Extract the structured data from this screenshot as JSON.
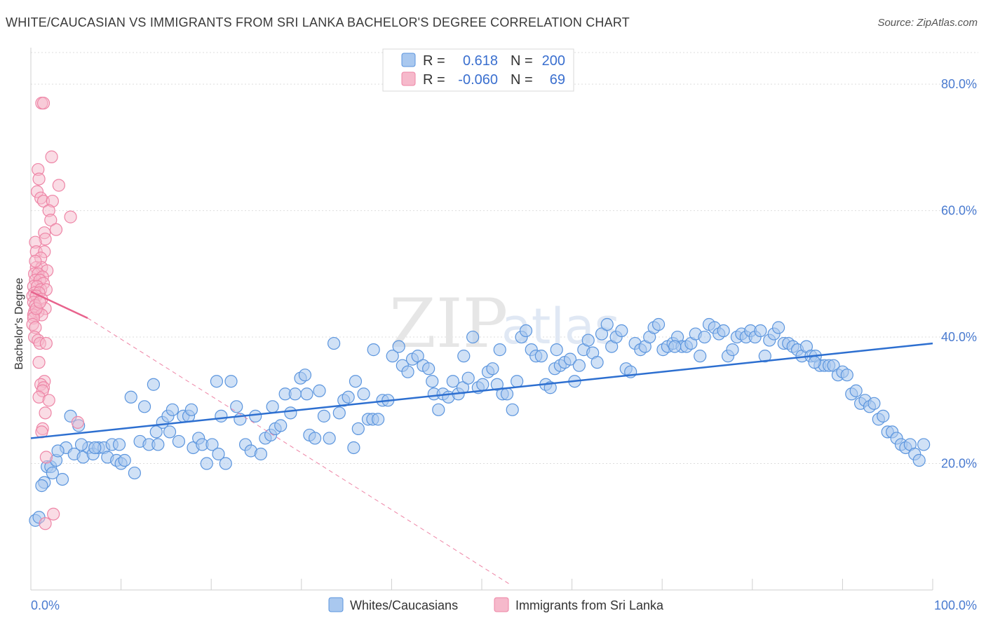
{
  "header": {
    "title": "WHITE/CAUCASIAN VS IMMIGRANTS FROM SRI LANKA BACHELOR'S DEGREE CORRELATION CHART",
    "source": "Source: ZipAtlas.com"
  },
  "watermark": {
    "zip": "ZIP",
    "atlas": "atlas"
  },
  "legend_box": {
    "row1": {
      "r_label": "R =",
      "r_value": "0.618",
      "n_label": "N =",
      "n_value": "200"
    },
    "row2": {
      "r_label": "R =",
      "r_value": "-0.060",
      "n_label": "N =",
      "n_value": "69"
    }
  },
  "colors": {
    "blue_fill": "#a9c8ef",
    "blue_stroke": "#5b95de",
    "blue_line": "#2d6fd0",
    "pink_fill": "#f6b9cb",
    "pink_stroke": "#ee85a6",
    "pink_line": "#e8638d",
    "grid": "#dddddd",
    "axis_text": "#4a7bd0"
  },
  "chart_data": {
    "type": "scatter",
    "title": "WHITE/CAUCASIAN VS IMMIGRANTS FROM SRI LANKA BACHELOR'S DEGREE CORRELATION CHART",
    "xlabel": "",
    "ylabel": "Bachelor's Degree",
    "xlim": [
      0,
      100
    ],
    "ylim": [
      0,
      85
    ],
    "x_tick_labels": [
      "0.0%",
      "100.0%"
    ],
    "y_ticks": [
      20,
      40,
      60,
      80
    ],
    "y_tick_labels": [
      "20.0%",
      "40.0%",
      "60.0%",
      "80.0%"
    ],
    "grid": true,
    "legend": "bottom-center",
    "series": [
      {
        "name": "Whites/Caucasians",
        "color": "#a9c8ef",
        "r": 0.618,
        "n": 200,
        "trend": {
          "x": [
            0,
            100
          ],
          "y": [
            24,
            39
          ]
        },
        "points": [
          [
            0.5,
            11
          ],
          [
            0.9,
            11.5
          ],
          [
            1.5,
            17
          ],
          [
            1.8,
            19.5
          ],
          [
            2.2,
            19.5
          ],
          [
            2.8,
            20.5
          ],
          [
            3.5,
            17.5
          ],
          [
            3.9,
            22.5
          ],
          [
            4.4,
            27.5
          ],
          [
            4.8,
            21.5
          ],
          [
            5.3,
            26
          ],
          [
            5.8,
            21
          ],
          [
            6.4,
            22.5
          ],
          [
            6.9,
            21.5
          ],
          [
            7.5,
            22.5
          ],
          [
            8.1,
            22.5
          ],
          [
            8.5,
            21
          ],
          [
            9.0,
            23
          ],
          [
            9.5,
            20.5
          ],
          [
            10,
            20
          ],
          [
            10.4,
            20.5
          ],
          [
            11.1,
            30.5
          ],
          [
            11.5,
            18.5
          ],
          [
            12.1,
            23.5
          ],
          [
            12.6,
            29
          ],
          [
            13.1,
            23
          ],
          [
            13.6,
            32.5
          ],
          [
            14.1,
            23
          ],
          [
            14.6,
            26.5
          ],
          [
            15.2,
            27.5
          ],
          [
            15.7,
            28.5
          ],
          [
            16.4,
            23.5
          ],
          [
            16.9,
            27.5
          ],
          [
            17.5,
            27.5
          ],
          [
            18.0,
            22.5
          ],
          [
            18.6,
            24
          ],
          [
            19.0,
            23
          ],
          [
            19.5,
            20
          ],
          [
            20.1,
            23
          ],
          [
            20.6,
            33
          ],
          [
            21.1,
            27.5
          ],
          [
            21.6,
            20
          ],
          [
            22.2,
            33
          ],
          [
            22.8,
            29
          ],
          [
            23.2,
            27
          ],
          [
            23.8,
            23
          ],
          [
            24.4,
            22
          ],
          [
            24.9,
            27.5
          ],
          [
            25.5,
            21.5
          ],
          [
            26.0,
            24
          ],
          [
            26.6,
            24.5
          ],
          [
            27.1,
            25.5
          ],
          [
            27.7,
            26
          ],
          [
            28.2,
            31
          ],
          [
            28.8,
            28
          ],
          [
            29.3,
            31
          ],
          [
            29.9,
            33.5
          ],
          [
            30.4,
            34
          ],
          [
            30.9,
            24.5
          ],
          [
            31.5,
            24
          ],
          [
            32.0,
            31.5
          ],
          [
            32.5,
            27.5
          ],
          [
            33.1,
            24
          ],
          [
            33.6,
            39
          ],
          [
            34.2,
            28
          ],
          [
            34.7,
            30
          ],
          [
            35.2,
            30.5
          ],
          [
            35.8,
            22.5
          ],
          [
            36.3,
            25.5
          ],
          [
            36.9,
            31
          ],
          [
            37.4,
            27
          ],
          [
            37.9,
            27
          ],
          [
            38.5,
            27
          ],
          [
            39.0,
            30
          ],
          [
            39.6,
            30
          ],
          [
            40.1,
            37
          ],
          [
            40.8,
            38.5
          ],
          [
            41.2,
            35.5
          ],
          [
            41.8,
            34.5
          ],
          [
            42.3,
            36.5
          ],
          [
            42.9,
            37
          ],
          [
            43.5,
            35.5
          ],
          [
            44.1,
            35
          ],
          [
            44.7,
            31
          ],
          [
            45.2,
            28.5
          ],
          [
            45.7,
            31
          ],
          [
            46.3,
            30.5
          ],
          [
            46.8,
            33
          ],
          [
            47.4,
            31
          ],
          [
            47.9,
            32
          ],
          [
            48.5,
            33.5
          ],
          [
            49.0,
            40
          ],
          [
            49.6,
            32
          ],
          [
            50.1,
            32.5
          ],
          [
            50.7,
            34.5
          ],
          [
            51.2,
            35
          ],
          [
            51.7,
            32.5
          ],
          [
            52.3,
            31
          ],
          [
            52.8,
            31
          ],
          [
            53.4,
            28.5
          ],
          [
            53.9,
            33
          ],
          [
            54.4,
            40
          ],
          [
            54.9,
            41
          ],
          [
            55.5,
            38
          ],
          [
            56.0,
            37
          ],
          [
            56.6,
            37
          ],
          [
            57.1,
            32.5
          ],
          [
            57.6,
            32
          ],
          [
            58.1,
            35
          ],
          [
            58.7,
            35.5
          ],
          [
            59.2,
            36
          ],
          [
            59.8,
            36.5
          ],
          [
            60.3,
            33
          ],
          [
            60.8,
            35.5
          ],
          [
            61.3,
            38
          ],
          [
            61.8,
            39.5
          ],
          [
            62.3,
            37.5
          ],
          [
            62.8,
            36
          ],
          [
            63.3,
            40.5
          ],
          [
            63.9,
            42
          ],
          [
            64.4,
            38.5
          ],
          [
            64.9,
            40
          ],
          [
            65.5,
            41
          ],
          [
            66.0,
            35
          ],
          [
            66.5,
            34.5
          ],
          [
            67.0,
            39
          ],
          [
            67.6,
            38
          ],
          [
            68.1,
            38.5
          ],
          [
            68.6,
            40
          ],
          [
            69.1,
            41.5
          ],
          [
            69.6,
            42
          ],
          [
            70.1,
            38
          ],
          [
            70.6,
            38.5
          ],
          [
            71.2,
            39
          ],
          [
            71.7,
            40
          ],
          [
            72.2,
            38.5
          ],
          [
            72.7,
            38.5
          ],
          [
            73.2,
            39
          ],
          [
            73.7,
            40.5
          ],
          [
            74.2,
            37
          ],
          [
            74.7,
            40
          ],
          [
            75.2,
            42
          ],
          [
            75.8,
            41.5
          ],
          [
            76.3,
            40.5
          ],
          [
            76.8,
            41
          ],
          [
            77.3,
            37
          ],
          [
            77.8,
            38
          ],
          [
            78.3,
            40
          ],
          [
            78.8,
            40.5
          ],
          [
            79.3,
            40
          ],
          [
            79.8,
            41
          ],
          [
            80.3,
            40
          ],
          [
            80.9,
            41
          ],
          [
            81.4,
            37
          ],
          [
            81.9,
            39.5
          ],
          [
            82.4,
            40.5
          ],
          [
            82.9,
            41.5
          ],
          [
            83.5,
            39
          ],
          [
            84.0,
            39
          ],
          [
            84.5,
            38.5
          ],
          [
            85.0,
            38
          ],
          [
            85.5,
            37
          ],
          [
            86.0,
            38.5
          ],
          [
            86.5,
            37
          ],
          [
            87.0,
            37
          ],
          [
            87.5,
            35.5
          ],
          [
            88.0,
            35.5
          ],
          [
            88.5,
            35.5
          ],
          [
            89.0,
            35.5
          ],
          [
            89.5,
            34
          ],
          [
            90.0,
            34.5
          ],
          [
            90.5,
            34
          ],
          [
            91.0,
            31
          ],
          [
            91.5,
            31.5
          ],
          [
            92.0,
            29.5
          ],
          [
            92.5,
            30
          ],
          [
            93.0,
            29
          ],
          [
            93.5,
            29.5
          ],
          [
            94.0,
            27
          ],
          [
            94.5,
            27.5
          ],
          [
            95.0,
            25
          ],
          [
            95.5,
            25
          ],
          [
            96.0,
            24
          ],
          [
            96.5,
            23
          ],
          [
            97.0,
            22.5
          ],
          [
            97.5,
            23
          ],
          [
            98.0,
            21.5
          ],
          [
            98.5,
            20.5
          ],
          [
            99.0,
            23
          ],
          [
            52.0,
            38
          ],
          [
            48.0,
            37
          ],
          [
            44.5,
            33
          ],
          [
            38.0,
            38
          ],
          [
            36.0,
            33
          ],
          [
            30.6,
            31
          ],
          [
            26.8,
            29
          ],
          [
            20.8,
            21.5
          ],
          [
            17.8,
            28.5
          ],
          [
            15.4,
            25
          ],
          [
            13.9,
            25
          ],
          [
            9.8,
            23
          ],
          [
            7.1,
            22.5
          ],
          [
            5.6,
            23
          ],
          [
            3.0,
            22
          ],
          [
            2.4,
            18.5
          ],
          [
            1.2,
            16.5
          ],
          [
            58.3,
            38
          ],
          [
            71.4,
            38.5
          ],
          [
            86.9,
            36
          ]
        ]
      },
      {
        "name": "Immigrants from Sri Lanka",
        "color": "#f6b9cb",
        "r": -0.06,
        "n": 69,
        "trend": {
          "x": [
            0,
            6.3
          ],
          "y": [
            47.2,
            43.0
          ]
        },
        "trend_dashed": {
          "x": [
            6.3,
            53
          ],
          "y": [
            43.0,
            1
          ]
        },
        "points": [
          [
            1.2,
            77
          ],
          [
            1.4,
            77
          ],
          [
            2.3,
            68.5
          ],
          [
            0.8,
            66.5
          ],
          [
            0.9,
            65
          ],
          [
            3.1,
            64
          ],
          [
            0.7,
            63
          ],
          [
            1.1,
            62
          ],
          [
            1.4,
            61.5
          ],
          [
            2.4,
            61.5
          ],
          [
            2.0,
            60
          ],
          [
            4.4,
            59
          ],
          [
            2.2,
            58.5
          ],
          [
            2.8,
            57
          ],
          [
            1.5,
            56.5
          ],
          [
            1.6,
            55.5
          ],
          [
            0.5,
            55
          ],
          [
            0.6,
            53.5
          ],
          [
            1.5,
            53.5
          ],
          [
            1.1,
            52.5
          ],
          [
            0.6,
            51
          ],
          [
            1.2,
            51
          ],
          [
            1.8,
            50.5
          ],
          [
            0.4,
            50
          ],
          [
            0.8,
            50
          ],
          [
            1.3,
            49.5
          ],
          [
            0.5,
            49
          ],
          [
            1.0,
            49
          ],
          [
            1.4,
            48.5
          ],
          [
            0.3,
            48
          ],
          [
            0.7,
            48
          ],
          [
            1.1,
            47.5
          ],
          [
            1.7,
            47.5
          ],
          [
            0.4,
            47
          ],
          [
            0.9,
            47
          ],
          [
            0.2,
            46.5
          ],
          [
            0.6,
            46.5
          ],
          [
            1.2,
            46
          ],
          [
            0.3,
            45.5
          ],
          [
            0.5,
            45
          ],
          [
            1.6,
            44.5
          ],
          [
            0.4,
            44
          ],
          [
            0.8,
            44
          ],
          [
            0.3,
            43.5
          ],
          [
            1.2,
            43.5
          ],
          [
            0.3,
            43
          ],
          [
            0.2,
            42
          ],
          [
            0.5,
            41.5
          ],
          [
            0.4,
            40
          ],
          [
            0.8,
            39.5
          ],
          [
            1.0,
            39
          ],
          [
            1.7,
            39
          ],
          [
            0.9,
            36
          ],
          [
            1.5,
            33
          ],
          [
            1.1,
            32.5
          ],
          [
            1.4,
            32
          ],
          [
            1.3,
            31.5
          ],
          [
            0.9,
            30.5
          ],
          [
            2.0,
            30
          ],
          [
            1.6,
            28
          ],
          [
            5.2,
            26.5
          ],
          [
            1.3,
            25.5
          ],
          [
            1.2,
            25
          ],
          [
            1.7,
            21
          ],
          [
            2.5,
            12
          ],
          [
            1.6,
            10.5
          ],
          [
            0.6,
            44.5
          ],
          [
            1.0,
            45.5
          ],
          [
            0.5,
            52
          ]
        ]
      }
    ]
  }
}
